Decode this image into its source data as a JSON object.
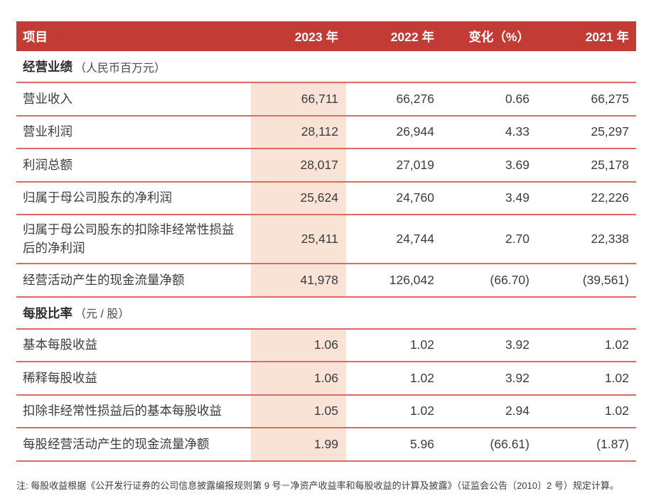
{
  "colors": {
    "header_bg": "#c23b34",
    "header_text": "#ffffff",
    "highlight_bg": "#f9e3d6",
    "separator": "#d96b61",
    "text": "#3c3c3c"
  },
  "header": {
    "columns": [
      "项目",
      "2023 年",
      "2022 年",
      "变化（%）",
      "2021 年"
    ]
  },
  "sections": [
    {
      "title": "经营业绩",
      "unit": "（人民币百万元）",
      "rows": [
        {
          "label": "营业收入",
          "values": [
            "66,711",
            "66,276",
            "0.66",
            "66,275"
          ]
        },
        {
          "label": "营业利润",
          "values": [
            "28,112",
            "26,944",
            "4.33",
            "25,297"
          ]
        },
        {
          "label": "利润总额",
          "values": [
            "28,017",
            "27,019",
            "3.69",
            "25,178"
          ]
        },
        {
          "label": "归属于母公司股东的净利润",
          "values": [
            "25,624",
            "24,760",
            "3.49",
            "22,226"
          ]
        },
        {
          "label": "归属于母公司股东的扣除非经常性损益后的净利润",
          "values": [
            "25,411",
            "24,744",
            "2.70",
            "22,338"
          ]
        },
        {
          "label": "经营活动产生的现金流量净额",
          "values": [
            "41,978",
            "126,042",
            "(66.70)",
            "(39,561)"
          ]
        }
      ]
    },
    {
      "title": "每股比率",
      "unit": "（元 / 股）",
      "rows": [
        {
          "label": "基本每股收益",
          "values": [
            "1.06",
            "1.02",
            "3.92",
            "1.02"
          ]
        },
        {
          "label": "稀释每股收益",
          "values": [
            "1.06",
            "1.02",
            "3.92",
            "1.02"
          ]
        },
        {
          "label": "扣除非经常性损益后的基本每股收益",
          "values": [
            "1.05",
            "1.02",
            "2.94",
            "1.02"
          ]
        },
        {
          "label": "每股经营活动产生的现金流量净额",
          "values": [
            "1.99",
            "5.96",
            "(66.61)",
            "(1.87)"
          ]
        }
      ]
    }
  ],
  "note": "注: 每股收益根据《公开发行证券的公司信息披露编报规则第 9 号－净资产收益率和每股收益的计算及披露》（证监会公告〔2010〕2 号）规定计算。"
}
